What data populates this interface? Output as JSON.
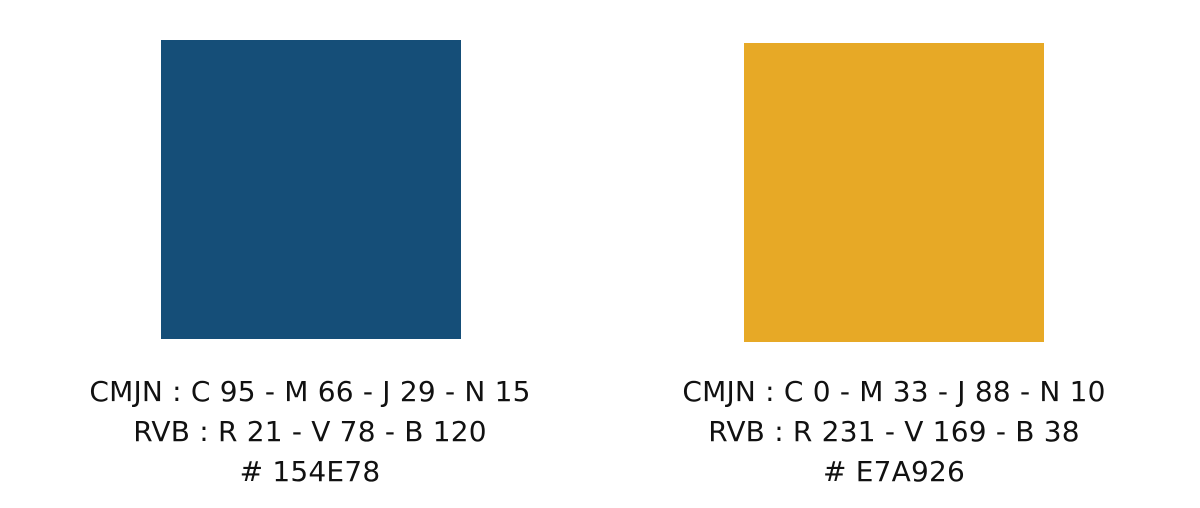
{
  "swatches": [
    {
      "color": "#154E78",
      "cmjn": "CMJN : C 95 - M 66 - J 29 - N 15",
      "rvb": "RVB : R 21 - V 78 - B 120",
      "hex": "# 154E78"
    },
    {
      "color": "#E7A926",
      "cmjn": "CMJN : C 0 - M 33 - J 88 - N 10",
      "rvb": "RVB : R 231 - V 169 - B 38",
      "hex": "# E7A926"
    }
  ]
}
